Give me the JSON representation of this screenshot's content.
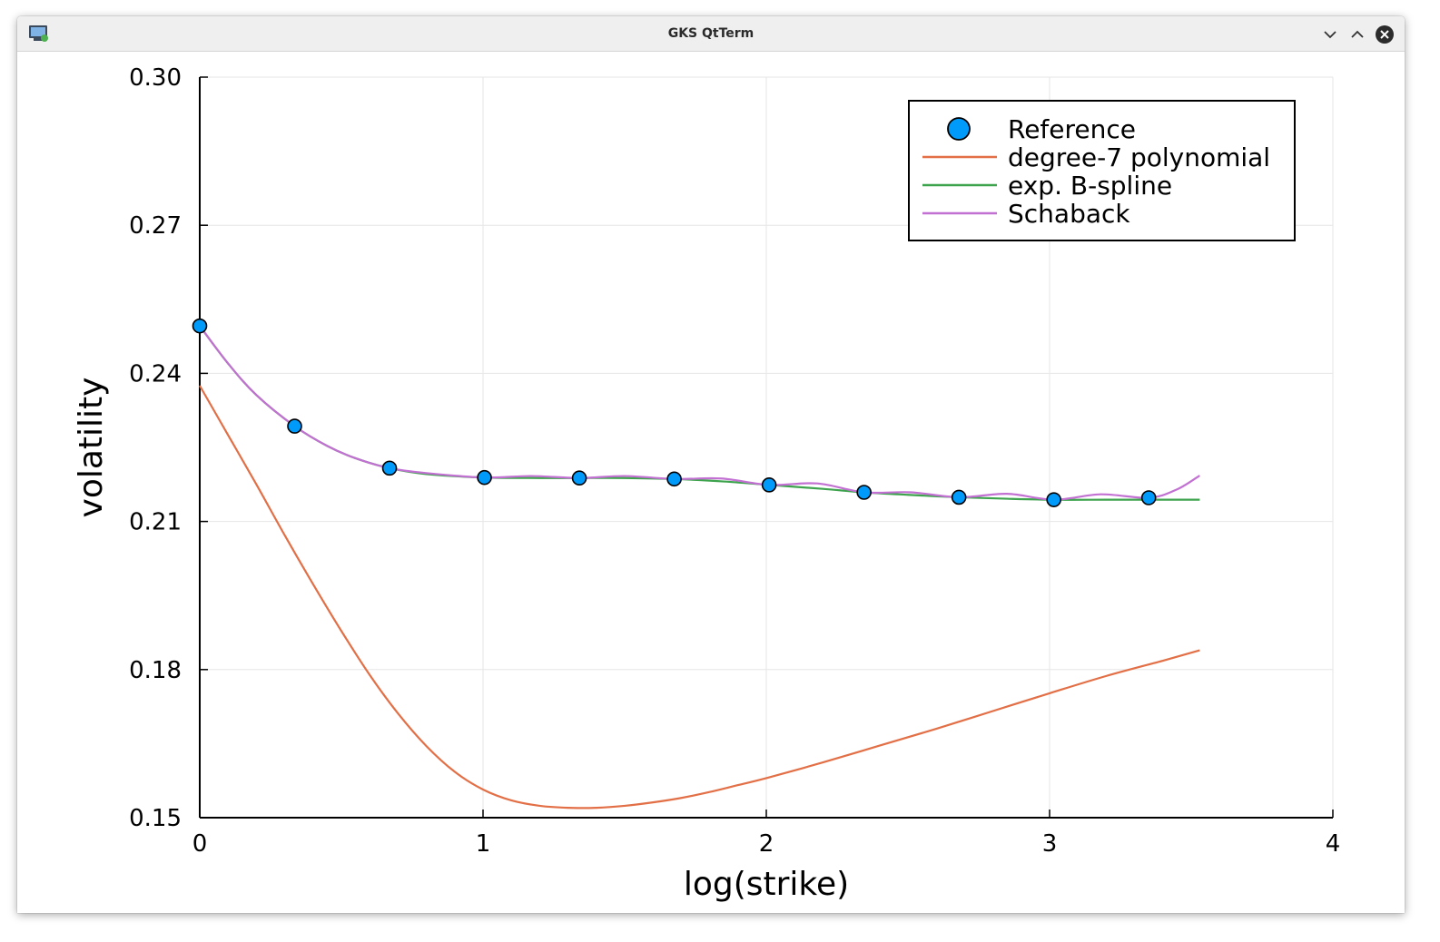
{
  "window": {
    "title": "GKS QtTerm",
    "controls": [
      "chevron-down-icon",
      "chevron-up-icon",
      "close-icon"
    ]
  },
  "chart_data": {
    "type": "line",
    "title": "",
    "xlabel": "log(strike)",
    "ylabel": "volatility",
    "xlim": [
      0,
      4
    ],
    "ylim": [
      0.15,
      0.3
    ],
    "x_ticks": [
      "0",
      "1",
      "2",
      "3",
      "4"
    ],
    "y_ticks": [
      "0.15",
      "0.18",
      "0.21",
      "0.24",
      "0.27",
      "0.30"
    ],
    "grid": true,
    "legend_position": "top-right",
    "series": [
      {
        "name": "Reference",
        "kind": "scatter",
        "color": "#009AFA",
        "x": [
          0.0,
          0.335,
          0.67,
          1.005,
          1.34,
          1.675,
          2.01,
          2.345,
          2.68,
          3.015,
          3.35
        ],
        "y": [
          0.2496,
          0.2293,
          0.2208,
          0.2189,
          0.2188,
          0.2186,
          0.2174,
          0.2159,
          0.2149,
          0.2144,
          0.2148
        ]
      },
      {
        "name": "degree-7 polynomial",
        "kind": "line",
        "color": "#E26F46",
        "x": [
          0.0,
          0.1,
          0.2,
          0.3,
          0.4,
          0.5,
          0.6,
          0.7,
          0.8,
          0.9,
          1.0,
          1.1,
          1.2,
          1.3,
          1.4,
          1.5,
          1.6,
          1.7,
          1.8,
          1.9,
          2.0,
          2.2,
          2.4,
          2.6,
          2.8,
          3.0,
          3.2,
          3.4,
          3.53
        ],
        "y": [
          0.2375,
          0.2275,
          0.2175,
          0.2072,
          0.1973,
          0.1878,
          0.1789,
          0.1711,
          0.1645,
          0.1593,
          0.1557,
          0.1535,
          0.1524,
          0.152,
          0.152,
          0.1524,
          0.1531,
          0.154,
          0.1552,
          0.1566,
          0.158,
          0.1612,
          0.1646,
          0.168,
          0.1716,
          0.1752,
          0.1787,
          0.1818,
          0.1839
        ]
      },
      {
        "name": "exp. B-spline",
        "kind": "line",
        "color": "#3DA44D",
        "x": [
          0.0,
          0.1,
          0.2,
          0.335,
          0.45,
          0.55,
          0.67,
          0.8,
          1.005,
          1.2,
          1.34,
          1.5,
          1.675,
          1.85,
          2.01,
          2.2,
          2.345,
          2.5,
          2.68,
          2.85,
          3.015,
          3.2,
          3.35,
          3.53
        ],
        "y": [
          0.2496,
          0.242,
          0.2356,
          0.2293,
          0.2253,
          0.2228,
          0.2208,
          0.2196,
          0.2189,
          0.2188,
          0.2188,
          0.2188,
          0.2186,
          0.2181,
          0.2174,
          0.2166,
          0.2159,
          0.2154,
          0.2149,
          0.2146,
          0.2144,
          0.2144,
          0.2144,
          0.2144
        ]
      },
      {
        "name": "Schaback",
        "kind": "line",
        "color": "#C271D2",
        "x": [
          0.0,
          0.1,
          0.2,
          0.335,
          0.45,
          0.55,
          0.67,
          0.8,
          1.005,
          1.17,
          1.34,
          1.5,
          1.675,
          1.84,
          2.01,
          2.18,
          2.345,
          2.51,
          2.68,
          2.85,
          3.015,
          3.18,
          3.35,
          3.45,
          3.53
        ],
        "y": [
          0.2496,
          0.242,
          0.2356,
          0.2293,
          0.2253,
          0.2228,
          0.2208,
          0.2198,
          0.2189,
          0.2192,
          0.2188,
          0.2192,
          0.2186,
          0.2187,
          0.2174,
          0.2177,
          0.2159,
          0.2159,
          0.2149,
          0.2156,
          0.2144,
          0.2155,
          0.2148,
          0.2165,
          0.2193
        ]
      }
    ]
  }
}
